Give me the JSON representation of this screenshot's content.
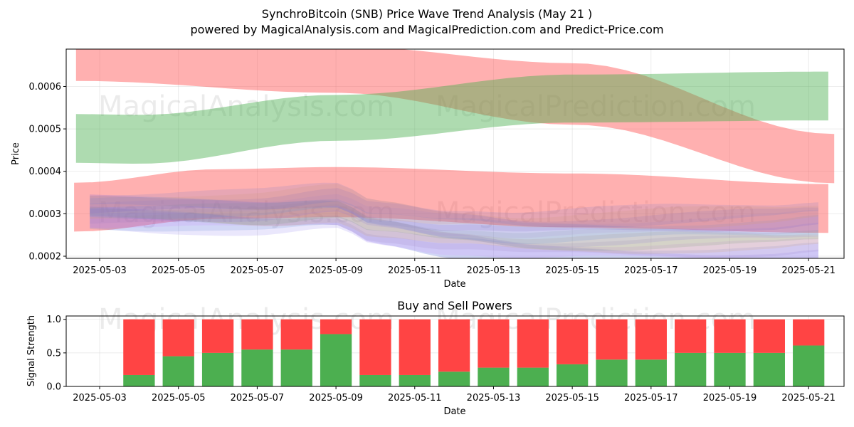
{
  "title_line1": "SynchroBitcoin (SNB) Price Wave Trend Analysis (May 21 )",
  "title_line2": "powered by MagicalAnalysis.com and MagicalPrediction.com and Predict-Price.com",
  "watermarks": [
    "MagicalAnalysis.com",
    "MagicalPrediction.com"
  ],
  "colors": {
    "bull_band": "#4caf50",
    "bear_band": "#ff5050",
    "buy": "#4caf50",
    "sell": "#ff4444"
  },
  "chart_data": [
    {
      "type": "area",
      "title": "",
      "xlabel": "Date",
      "ylabel": "Price",
      "x_ticks": [
        "2025-05-03",
        "2025-05-05",
        "2025-05-07",
        "2025-05-09",
        "2025-05-11",
        "2025-05-13",
        "2025-05-15",
        "2025-05-17",
        "2025-05-19",
        "2025-05-21"
      ],
      "y_ticks": [
        "0.0002",
        "0.0003",
        "0.0004",
        "0.0005",
        "0.0006"
      ],
      "xlim_days": [
        -0.85,
        18.9
      ],
      "ylim": [
        0.000195,
        0.000688
      ],
      "x_origin_date": "2025-05-03",
      "bands": [
        {
          "name": "red-band-upper",
          "color": "bear",
          "x": [
            -0.6,
            6.0,
            12.0,
            18.65
          ],
          "lo": [
            0.000613,
            0.000585,
            0.00051,
            0.000372
          ],
          "hi": [
            0.00069,
            0.000695,
            0.000655,
            0.000488
          ]
        },
        {
          "name": "green-band-upper",
          "color": "bull",
          "x": [
            -0.6,
            1.0,
            6.0,
            12.0,
            18.5
          ],
          "lo": [
            0.00042,
            0.000418,
            0.000472,
            0.000515,
            0.00052
          ],
          "hi": [
            0.000535,
            0.000533,
            0.00058,
            0.000628,
            0.000635
          ]
        },
        {
          "name": "red-band-lower",
          "color": "bear",
          "x": [
            -0.65,
            3.0,
            6.0,
            12.0,
            18.5
          ],
          "lo": [
            0.000258,
            0.000288,
            0.000292,
            0.000268,
            0.000255
          ],
          "hi": [
            0.000373,
            0.000405,
            0.00041,
            0.000395,
            0.00037
          ]
        }
      ],
      "series": [
        {
          "name": "wave-mean",
          "values_x": [
            -0.25,
            2,
            4,
            6,
            7,
            9,
            11,
            13,
            15,
            17,
            18.25
          ],
          "values": [
            0.00031,
            0.000308,
            0.000305,
            0.000318,
            0.00028,
            0.000258,
            0.000245,
            0.000248,
            0.000252,
            0.000255,
            0.000262
          ]
        }
      ]
    },
    {
      "type": "bar",
      "title": "Buy and Sell Powers",
      "xlabel": "Date",
      "ylabel": "Signal Strength",
      "x_ticks": [
        "2025-05-03",
        "2025-05-05",
        "2025-05-07",
        "2025-05-09",
        "2025-05-11",
        "2025-05-13",
        "2025-05-15",
        "2025-05-17",
        "2025-05-19",
        "2025-05-21"
      ],
      "y_ticks": [
        "0.0",
        "0.5",
        "1.0"
      ],
      "ylim": [
        0,
        1.05
      ],
      "categories": [
        "2025-05-04",
        "2025-05-05",
        "2025-05-06",
        "2025-05-07",
        "2025-05-08",
        "2025-05-09",
        "2025-05-10",
        "2025-05-11",
        "2025-05-12",
        "2025-05-13",
        "2025-05-14",
        "2025-05-15",
        "2025-05-16",
        "2025-05-17",
        "2025-05-18",
        "2025-05-19",
        "2025-05-20",
        "2025-05-21"
      ],
      "series": [
        {
          "name": "Buy",
          "values": [
            0.17,
            0.45,
            0.5,
            0.55,
            0.55,
            0.78,
            0.17,
            0.17,
            0.22,
            0.28,
            0.28,
            0.33,
            0.4,
            0.4,
            0.5,
            0.5,
            0.5,
            0.61
          ]
        },
        {
          "name": "Sell",
          "values": [
            0.83,
            0.55,
            0.5,
            0.45,
            0.45,
            0.22,
            0.83,
            0.83,
            0.78,
            0.72,
            0.72,
            0.67,
            0.6,
            0.6,
            0.5,
            0.5,
            0.5,
            0.39
          ]
        }
      ]
    }
  ]
}
